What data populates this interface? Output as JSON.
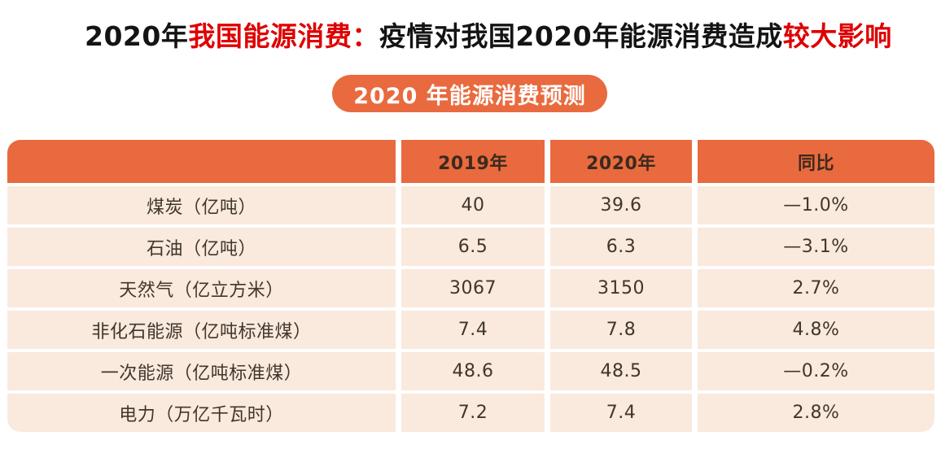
{
  "title": {
    "seg1_black": "2020年",
    "seg2_red": "我国能源消费：",
    "seg3_black": "疫情对我国2020年能源消费造成",
    "seg4_red": "较大影响"
  },
  "badge": {
    "label": "2020 年能源消费预测"
  },
  "chart_data": {
    "type": "table",
    "title": "2020 年能源消费预测",
    "columns": [
      "",
      "2019年",
      "2020年",
      "同比"
    ],
    "rows": [
      [
        "煤炭（亿吨）",
        "40",
        "39.6",
        "—1.0%"
      ],
      [
        "石油（亿吨）",
        "6.5",
        "6.3",
        "—3.1%"
      ],
      [
        "天然气（亿立方米）",
        "3067",
        "3150",
        "2.7%"
      ],
      [
        "非化石能源（亿吨标准煤）",
        "7.4",
        "7.8",
        "4.8%"
      ],
      [
        "一次能源（亿吨标准煤）",
        "48.6",
        "48.5",
        "—0.2%"
      ],
      [
        "电力（万亿千瓦时）",
        "7.2",
        "7.4",
        "2.8%"
      ]
    ],
    "yoy_values_percent": [
      -1.0,
      -3.1,
      2.7,
      4.8,
      -0.2,
      2.8
    ],
    "colors": {
      "header_bg": "#E96A3E",
      "badge_bg": "#E96A3E",
      "row_bg": "#FAE9DD",
      "header_text": "#3C2A1E",
      "body_text": "#40362C",
      "title_black": "#141414",
      "title_red": "#DE0000",
      "badge_text": "#FFFFFF"
    }
  }
}
